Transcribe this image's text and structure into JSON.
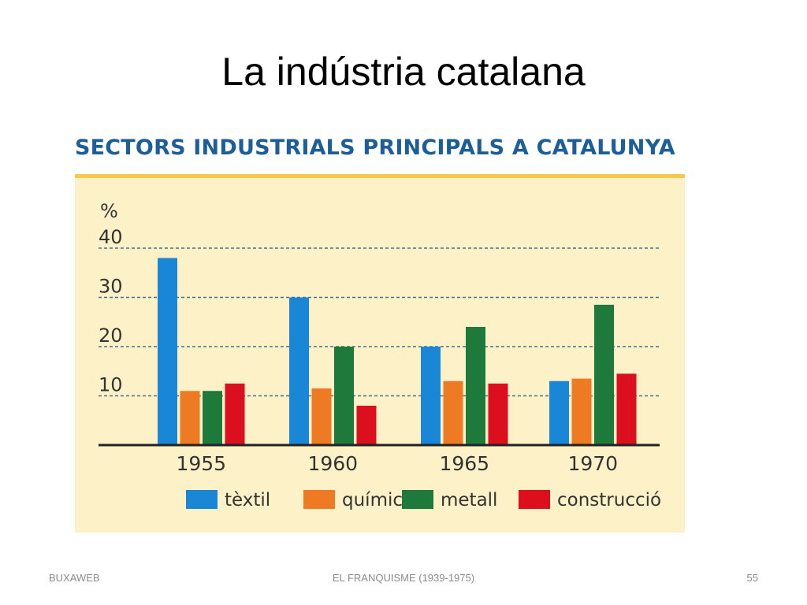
{
  "slide": {
    "title": "La indústria catalana",
    "footer_left": "BUXAWEB",
    "footer_center": "EL FRANQUISME (1939-1975)",
    "footer_right": "55"
  },
  "chart_data": {
    "type": "bar",
    "title": "SECTORS INDUSTRIALS PRINCIPALS A CATALUNYA",
    "ylabel": "%",
    "xlabel": "",
    "ylim": [
      0,
      40
    ],
    "yticks": [
      10,
      20,
      30,
      40
    ],
    "grid": true,
    "legend_placement": "bottom",
    "categories": [
      "1955",
      "1960",
      "1965",
      "1970"
    ],
    "series": [
      {
        "name": "tèxtil",
        "color": "#1a86d6",
        "values": [
          38,
          30,
          20,
          13
        ]
      },
      {
        "name": "químic",
        "color": "#ee7a24",
        "values": [
          11,
          11.5,
          13,
          13.5
        ]
      },
      {
        "name": "metall",
        "color": "#1d7a3a",
        "values": [
          11,
          20,
          24,
          28.5
        ]
      },
      {
        "name": "construcció",
        "color": "#dc0f1f",
        "values": [
          12.5,
          8,
          12.5,
          14.5
        ]
      }
    ],
    "colors": {
      "background": "#fdf1c8",
      "heading": "#1b5e9a",
      "rule": "#f6c94d",
      "grid": "#4a6f8f"
    }
  }
}
